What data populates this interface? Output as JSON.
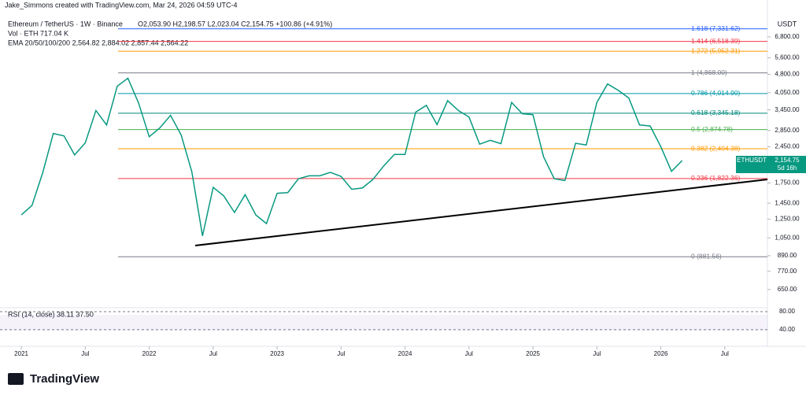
{
  "chart_data": {
    "type": "line",
    "log_scale": true,
    "credit": "Jake_Simmons created with TradingView.com, Mar 24, 2026 04:59 UTC-4",
    "title": "Ethereum / TetherUS · 1W · Binance",
    "ohlc": "O2,053.90 H2,198.57 L2,023.04 C2,154.75 +100.86 (+4.91%)",
    "volume_label": "Vol · ETH 717.04 K",
    "ema_label": "EMA 20/50/100/200 2,564.82 2,884.02 2,857.44 2,564.22",
    "rsi_label": "RSI (14, close) 38.11 37.50",
    "currency": "USDT",
    "symbol": "ETHUSDT",
    "last_price": {
      "value": 2154.75,
      "label": "2,154.75"
    },
    "countdown": "5d 16h",
    "brand": "TradingView",
    "x": [
      "2021-01",
      "2021-02",
      "2021-03",
      "2021-04",
      "2021-05",
      "2021-06",
      "2021-07",
      "2021-08",
      "2021-09",
      "2021-10",
      "2021-11",
      "2021-12",
      "2022-01",
      "2022-02",
      "2022-03",
      "2022-04",
      "2022-05",
      "2022-06",
      "2022-07",
      "2022-08",
      "2022-09",
      "2022-10",
      "2022-11",
      "2022-12",
      "2023-01",
      "2023-02",
      "2023-03",
      "2023-04",
      "2023-05",
      "2023-06",
      "2023-07",
      "2023-08",
      "2023-09",
      "2023-10",
      "2023-11",
      "2023-12",
      "2024-01",
      "2024-02",
      "2024-03",
      "2024-04",
      "2024-05",
      "2024-06",
      "2024-07",
      "2024-08",
      "2024-09",
      "2024-10",
      "2024-11",
      "2024-12",
      "2025-01",
      "2025-02",
      "2025-03",
      "2025-04",
      "2025-05",
      "2025-06",
      "2025-07",
      "2025-08",
      "2025-09",
      "2025-10",
      "2025-11",
      "2025-12",
      "2026-01",
      "2026-02",
      "2026-03"
    ],
    "series": [
      {
        "name": "ETHUSDT",
        "color": "#089981",
        "values": [
          1300,
          1420,
          1920,
          2770,
          2710,
          2270,
          2540,
          3430,
          3000,
          4300,
          4630,
          3680,
          2690,
          2920,
          3280,
          2730,
          1940,
          1070,
          1680,
          1550,
          1330,
          1570,
          1300,
          1200,
          1590,
          1600,
          1820,
          1870,
          1870,
          1930,
          1860,
          1650,
          1670,
          1810,
          2050,
          2280,
          2280,
          3380,
          3600,
          3010,
          3760,
          3430,
          3230,
          2510,
          2600,
          2520,
          3700,
          3330,
          3300,
          2230,
          1820,
          1790,
          2530,
          2490,
          3700,
          4390,
          4140,
          3850,
          3000,
          2970,
          2450,
          1950,
          2155
        ]
      }
    ],
    "xlim": [
      "2020-11",
      "2026-11"
    ],
    "xticks": [
      {
        "value": "2021-01",
        "label": "2021"
      },
      {
        "value": "2021-07",
        "label": "Jul"
      },
      {
        "value": "2022-01",
        "label": "2022"
      },
      {
        "value": "2022-07",
        "label": "Jul"
      },
      {
        "value": "2023-01",
        "label": "2023"
      },
      {
        "value": "2023-07",
        "label": "Jul"
      },
      {
        "value": "2024-01",
        "label": "2024"
      },
      {
        "value": "2024-07",
        "label": "Jul"
      },
      {
        "value": "2025-01",
        "label": "2025"
      },
      {
        "value": "2025-07",
        "label": "Jul"
      },
      {
        "value": "2026-01",
        "label": "2026"
      },
      {
        "value": "2026-07",
        "label": "Jul"
      }
    ],
    "ylim": [
      553,
      9580
    ],
    "yticks": [
      {
        "value": 6800,
        "label": "6,800.00"
      },
      {
        "value": 5600,
        "label": "5,600.00"
      },
      {
        "value": 4800,
        "label": "4,800.00"
      },
      {
        "value": 4050,
        "label": "4,050.00"
      },
      {
        "value": 3450,
        "label": "3,450.00"
      },
      {
        "value": 2850,
        "label": "2,850.00"
      },
      {
        "value": 2450,
        "label": "2,450.00"
      },
      {
        "value": 1750,
        "label": "1,750.00"
      },
      {
        "value": 1450,
        "label": "1,450.00"
      },
      {
        "value": 1250,
        "label": "1,250.00"
      },
      {
        "value": 1050,
        "label": "1,050.00"
      },
      {
        "value": 890,
        "label": "890.00"
      },
      {
        "value": 770,
        "label": "770.00"
      },
      {
        "value": 650,
        "label": "650.00"
      }
    ],
    "fib_levels": [
      {
        "value": 7331.62,
        "label": "1.618 (7,331.62)",
        "color": "#2962ff"
      },
      {
        "value": 6518.39,
        "label": "1.414 (6,518.39)",
        "color": "#f23645"
      },
      {
        "value": 5952.31,
        "label": "1.272 (5,952.31)",
        "color": "#ff9800"
      },
      {
        "value": 4868,
        "label": "1 (4,868.00)",
        "color": "#787b86"
      },
      {
        "value": 4014.9,
        "label": "0.786 (4,014.90)",
        "color": "#0097a7"
      },
      {
        "value": 3345.18,
        "label": "0.618 (3,345.18)",
        "color": "#00897b"
      },
      {
        "value": 2874.78,
        "label": "0.5 (2,874.78)",
        "color": "#4caf50"
      },
      {
        "value": 2404.38,
        "label": "0.382 (2,404.38)",
        "color": "#ff9800"
      },
      {
        "value": 1822.36,
        "label": "0.236 (1,822.36)",
        "color": "#f23645"
      },
      {
        "value": 881.56,
        "label": "0 (881.56)",
        "color": "#787b86"
      }
    ],
    "rsi_ylim": [
      17,
      87
    ],
    "rsi_yticks": [
      {
        "value": 80,
        "label": "80.00"
      },
      {
        "value": 40,
        "label": "40.00"
      }
    ]
  }
}
